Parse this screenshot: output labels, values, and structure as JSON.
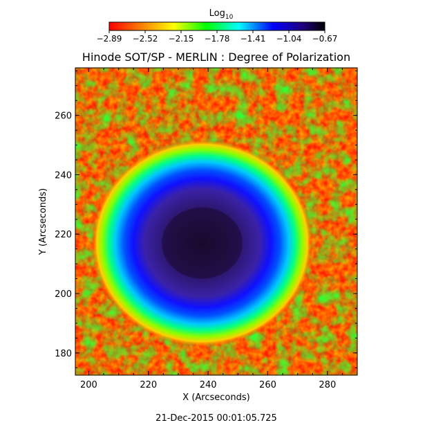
{
  "chart_data": {
    "type": "heatmap",
    "title": "Hinode SOT/SP - MERLIN : Degree of Polarization",
    "xlabel": "X (Arcseconds)",
    "ylabel": "Y (Arcseconds)",
    "xlim": [
      195.5,
      290
    ],
    "ylim": [
      172.5,
      276
    ],
    "x_ticks": [
      200,
      220,
      240,
      260,
      280
    ],
    "y_ticks": [
      180,
      200,
      220,
      240,
      260
    ],
    "x_tick_labels": [
      "200",
      "220",
      "240",
      "260",
      "280"
    ],
    "y_tick_labels": [
      "180",
      "200",
      "220",
      "240",
      "260"
    ],
    "timestamp": "21-Dec-2015 00:01:05.725",
    "colorbar": {
      "title": "Log",
      "title_subscript": "10",
      "range": [
        -2.89,
        -0.67
      ],
      "ticks": [
        -2.89,
        -2.52,
        -2.15,
        -1.78,
        -1.41,
        -1.04,
        -0.67
      ],
      "tick_labels": [
        "−2.89",
        "−2.52",
        "−2.15",
        "−1.78",
        "−1.41",
        "−1.04",
        "−0.67"
      ],
      "colormap": [
        "#ff0000",
        "#ff8800",
        "#ffff00",
        "#00ff00",
        "#00ffff",
        "#0000ff",
        "#20007a",
        "#000000"
      ]
    },
    "sunspot": {
      "umbra_center": [
        238,
        217
      ],
      "umbra_radius": [
        13.5,
        12
      ],
      "penumbra_radius": [
        24,
        20
      ],
      "umbra_log_value": -0.75,
      "penumbra_log_value": -1.05,
      "quiet_sun_log_value": -2.85
    }
  }
}
